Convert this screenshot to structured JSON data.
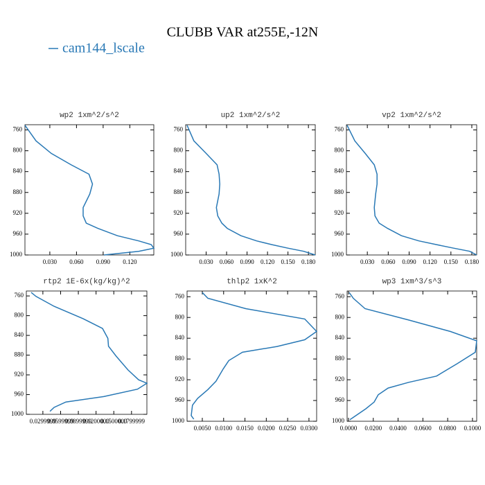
{
  "title": "CLUBB VAR at255E,-12N",
  "legend": {
    "label": "cam144_lscale",
    "color": "#2878b5"
  },
  "chart_data": [
    {
      "type": "line",
      "title": "wp2   1xm^2/s^2",
      "x": [
        0.002,
        0.0145,
        0.0316,
        0.054,
        0.074,
        0.078,
        0.075,
        0.0675,
        0.0675,
        0.071,
        0.084,
        0.106,
        0.13,
        0.144,
        0.147,
        0.13,
        0.091
      ],
      "values": [
        751,
        781,
        805,
        827,
        845,
        864,
        883,
        909,
        925,
        939,
        949,
        963,
        973,
        980,
        987,
        993,
        1000
      ],
      "xlim": [
        0.002,
        0.147
      ],
      "ylim": [
        1000,
        750
      ],
      "xticks": [
        {
          "value": 0.03,
          "label": "0.030"
        },
        {
          "value": 0.06,
          "label": "0.060"
        },
        {
          "value": 0.09,
          "label": "0.090"
        },
        {
          "value": 0.12,
          "label": "0.120"
        }
      ],
      "yticks": [
        760,
        800,
        840,
        880,
        920,
        960,
        1000
      ]
    },
    {
      "type": "line",
      "title": "up2   1xm^2/s^2",
      "x": [
        0.002,
        0.012,
        0.03,
        0.046,
        0.049,
        0.05,
        0.049,
        0.045,
        0.047,
        0.053,
        0.061,
        0.081,
        0.104,
        0.126,
        0.15,
        0.173,
        0.19
      ],
      "values": [
        751,
        781,
        805,
        827,
        845,
        864,
        883,
        909,
        925,
        939,
        949,
        963,
        973,
        980,
        987,
        993,
        1000
      ],
      "xlim": [
        0,
        0.19
      ],
      "ylim": [
        1000,
        750
      ],
      "xticks": [
        {
          "value": 0.03,
          "label": "0.030"
        },
        {
          "value": 0.06,
          "label": "0.060"
        },
        {
          "value": 0.09,
          "label": "0.090"
        },
        {
          "value": 0.12,
          "label": "0.120"
        },
        {
          "value": 0.15,
          "label": "0.150"
        },
        {
          "value": 0.18,
          "label": "0.180"
        }
      ],
      "yticks": [
        760,
        800,
        840,
        880,
        920,
        960,
        1000
      ]
    },
    {
      "type": "line",
      "title": "vp2   1xm^2/s^2",
      "x": [
        0.001,
        0.012,
        0.027,
        0.04,
        0.044,
        0.044,
        0.042,
        0.04,
        0.041,
        0.047,
        0.059,
        0.079,
        0.104,
        0.129,
        0.154,
        0.177,
        0.187
      ],
      "values": [
        751,
        781,
        805,
        827,
        845,
        864,
        883,
        909,
        925,
        939,
        949,
        963,
        973,
        980,
        987,
        993,
        1000
      ],
      "xlim": [
        0,
        0.187
      ],
      "ylim": [
        1000,
        750
      ],
      "xticks": [
        {
          "value": 0.03,
          "label": "0.030"
        },
        {
          "value": 0.06,
          "label": "0.060"
        },
        {
          "value": 0.09,
          "label": "0.090"
        },
        {
          "value": 0.12,
          "label": "0.120"
        },
        {
          "value": 0.15,
          "label": "0.150"
        },
        {
          "value": 0.18,
          "label": "0.180"
        }
      ],
      "yticks": [
        760,
        800,
        840,
        880,
        920,
        960,
        1000
      ]
    },
    {
      "type": "line",
      "title": "rtp2   1E-6x(kg/kg)^2",
      "x": [
        0.0102,
        0.0184,
        0.049,
        0.098,
        0.131,
        0.14,
        0.141,
        0.154,
        0.174,
        0.192,
        0.206,
        0.19,
        0.133,
        0.069,
        0.049,
        0.042
      ],
      "values": [
        753,
        761,
        781,
        806,
        826,
        846,
        862,
        882,
        910,
        930,
        937,
        949,
        964,
        975,
        986,
        994
      ],
      "xlim": [
        0.002,
        0.206
      ],
      "ylim": [
        1000,
        750
      ],
      "xticks": [
        {
          "value": 0.03,
          "label": "0.0299999"
        },
        {
          "value": 0.06,
          "label": "0.0599999"
        },
        {
          "value": 0.09,
          "label": "0.0899999"
        },
        {
          "value": 0.12,
          "label": "0.1200000"
        },
        {
          "value": 0.15,
          "label": "0.1500000"
        },
        {
          "value": 0.18,
          "label": "0.1799999"
        }
      ],
      "yticks": [
        760,
        800,
        840,
        880,
        920,
        960,
        1000
      ]
    },
    {
      "type": "line",
      "title": "thlp2   1xK^2",
      "x": [
        0.005,
        0.0063,
        0.0152,
        0.029,
        0.0318,
        0.029,
        0.0225,
        0.0144,
        0.0112,
        0.0099,
        0.0082,
        0.0063,
        0.0039,
        0.0027,
        0.0024,
        0.003
      ],
      "values": [
        752,
        763,
        783,
        803,
        827,
        843,
        856,
        867,
        883,
        899,
        923,
        939,
        956,
        969,
        989,
        996
      ],
      "xlim": [
        0.00143,
        0.0318
      ],
      "ylim": [
        1000,
        749
      ],
      "xticks": [
        {
          "value": 0.005,
          "label": "0.0050"
        },
        {
          "value": 0.01,
          "label": "0.0100"
        },
        {
          "value": 0.015,
          "label": "0.0150"
        },
        {
          "value": 0.02,
          "label": "0.0200"
        },
        {
          "value": 0.025,
          "label": "0.0250"
        },
        {
          "value": 0.03,
          "label": "0.0300"
        }
      ],
      "yticks": [
        760,
        800,
        840,
        880,
        920,
        960,
        1000
      ]
    },
    {
      "type": "line",
      "title": "wp3   1xm^3/s^3",
      "x": [
        0.0006,
        0.0039,
        0.0134,
        0.0486,
        0.0821,
        0.1034,
        0.1023,
        0.0877,
        0.071,
        0.0486,
        0.0319,
        0.024,
        0.0207,
        0.014,
        0.0011
      ],
      "values": [
        752,
        763,
        783,
        805,
        827,
        845,
        867,
        889,
        913,
        925,
        936,
        949,
        963,
        976,
        997
      ],
      "xlim": [
        -0.0011,
        0.1034
      ],
      "ylim": [
        1000,
        749
      ],
      "xticks": [
        {
          "value": 0,
          "label": "0.0000"
        },
        {
          "value": 0.02,
          "label": "0.0200"
        },
        {
          "value": 0.04,
          "label": "0.0400"
        },
        {
          "value": 0.06,
          "label": "0.0600"
        },
        {
          "value": 0.08,
          "label": "0.0800"
        },
        {
          "value": 0.1,
          "label": "0.1000"
        }
      ],
      "yticks": [
        760,
        800,
        840,
        880,
        920,
        960,
        1000
      ]
    }
  ]
}
